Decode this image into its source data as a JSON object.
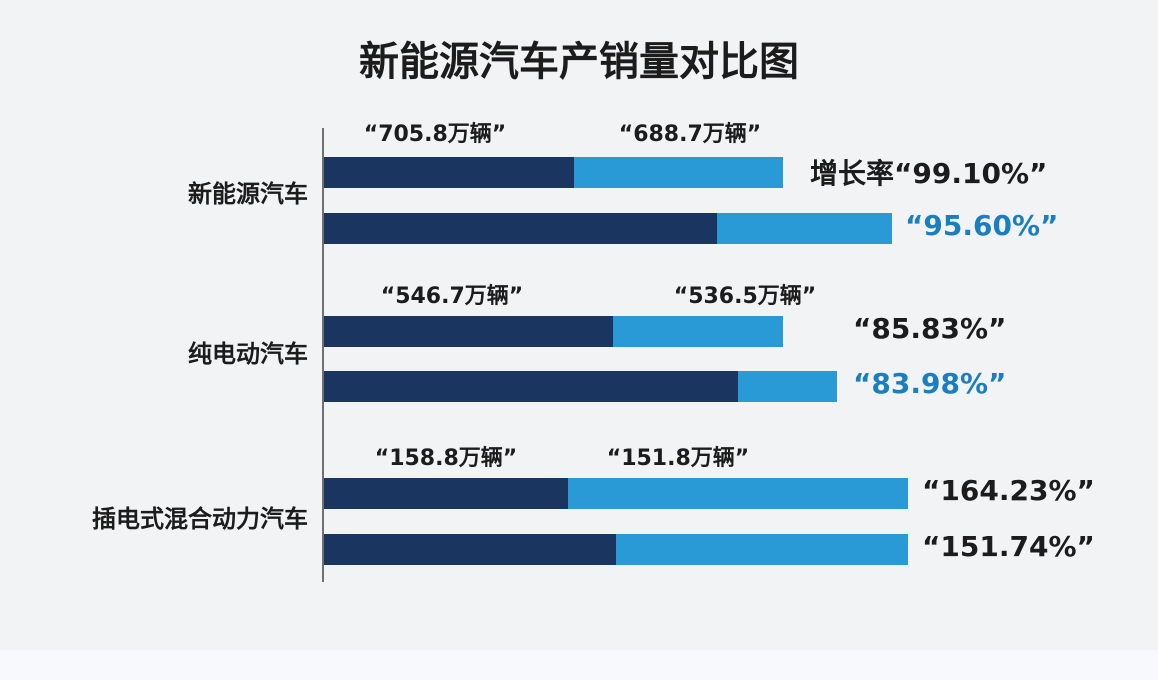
{
  "title": "新能源汽车产销量对比图",
  "groups": [
    {
      "label": "新能源汽车",
      "top_labels": [
        "“705.8万辆”",
        "“688.7万辆”"
      ],
      "rates": [
        "增长率“99.10%”",
        "“95.60%”"
      ]
    },
    {
      "label": "纯电动汽车",
      "top_labels": [
        "“546.7万辆”",
        "“536.5万辆”"
      ],
      "rates": [
        "“85.83%”",
        "“83.98%”"
      ]
    },
    {
      "label": "插电式混合动力汽车",
      "top_labels": [
        "“158.8万辆”",
        "“151.8万辆”"
      ],
      "rates": [
        "“164.23%”",
        "“151.74%”"
      ]
    }
  ]
}
